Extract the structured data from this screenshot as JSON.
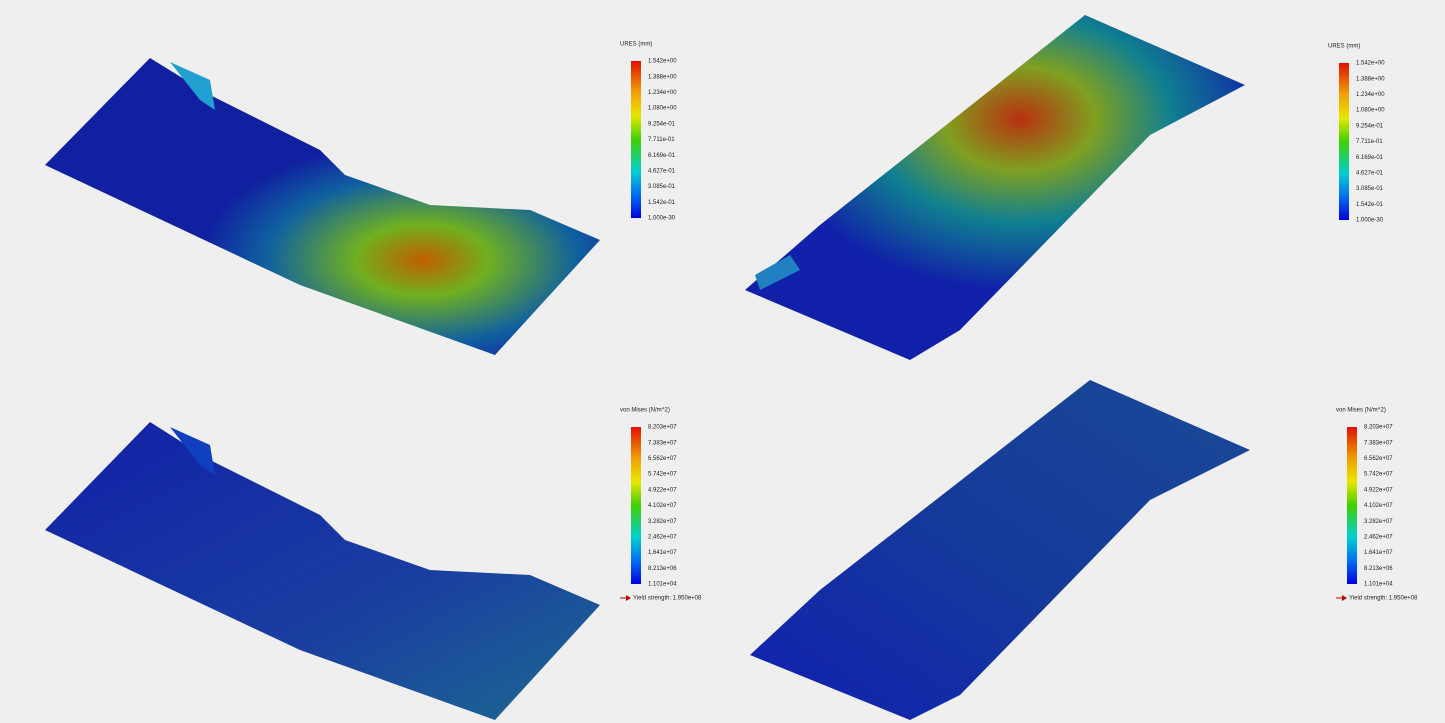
{
  "panels": [
    {
      "legend": {
        "title": "URES (mm)",
        "labels": [
          "1.542e+00",
          "1.388e+00",
          "1.234e+00",
          "1.080e+00",
          "9.254e-01",
          "7.711e-01",
          "6.169e-01",
          "4.627e-01",
          "3.085e-01",
          "1.542e-01",
          "1.000e-30"
        ]
      }
    },
    {
      "legend": {
        "title": "URES (mm)",
        "labels": [
          "1.542e+00",
          "1.388e+00",
          "1.234e+00",
          "1.080e+00",
          "9.254e-01",
          "7.711e-01",
          "6.169e-01",
          "4.627e-01",
          "3.085e-01",
          "1.542e-01",
          "1.000e-30"
        ]
      }
    },
    {
      "legend": {
        "title": "von Mises (N/m^2)",
        "labels": [
          "8.203e+07",
          "7.383e+07",
          "6.562e+07",
          "5.742e+07",
          "4.922e+07",
          "4.102e+07",
          "3.282e+07",
          "2.462e+07",
          "1.641e+07",
          "8.213e+06",
          "1.101e+04"
        ],
        "yield": "Yield strength: 1.950e+08"
      }
    },
    {
      "legend": {
        "title": "von Mises (N/m^2)",
        "labels": [
          "8.203e+07",
          "7.383e+07",
          "6.562e+07",
          "5.742e+07",
          "4.922e+07",
          "4.102e+07",
          "3.282e+07",
          "2.462e+07",
          "1.641e+07",
          "8.213e+06",
          "1.101e+04"
        ],
        "yield": "Yield strength: 1.950e+08"
      }
    }
  ]
}
